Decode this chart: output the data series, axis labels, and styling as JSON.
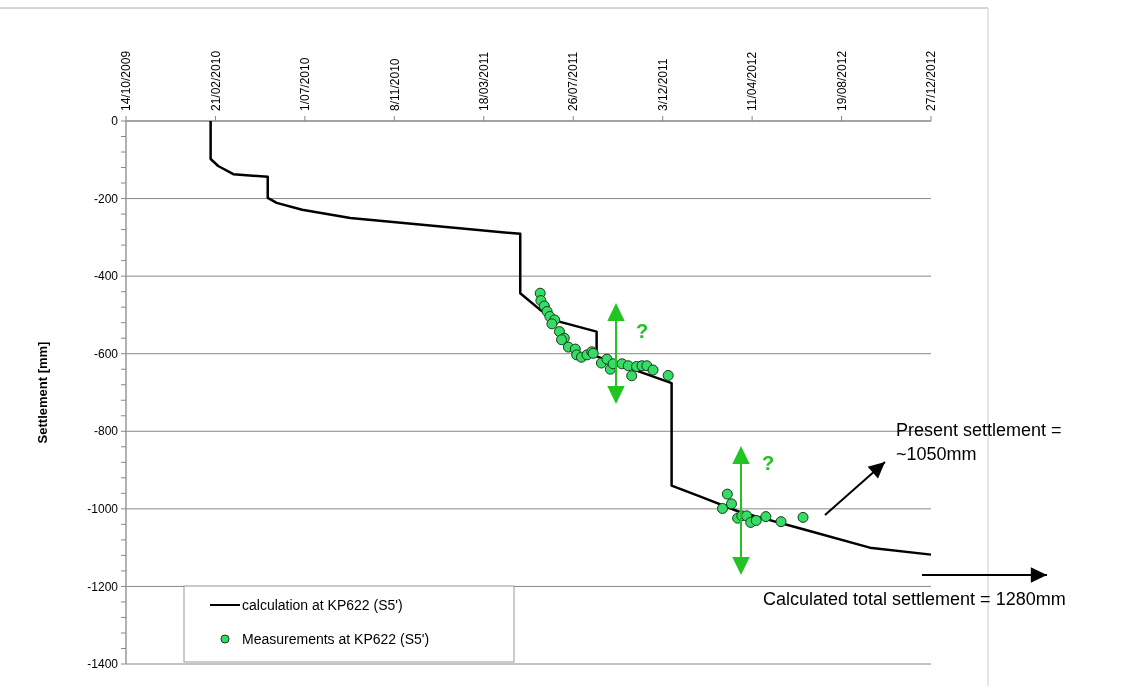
{
  "chart_data": {
    "type": "line",
    "ylabel": "Settlement [mm]",
    "xlim": [
      "2009-10-14",
      "2012-12-27"
    ],
    "xticks": [
      {
        "value": "2009-10-14",
        "label": "14/10/2009"
      },
      {
        "value": "2010-02-21",
        "label": "21/02/2010"
      },
      {
        "value": "2010-07-01",
        "label": "1/07/2010"
      },
      {
        "value": "2010-11-08",
        "label": "8/11/2010"
      },
      {
        "value": "2011-03-18",
        "label": "18/03/2011"
      },
      {
        "value": "2011-07-26",
        "label": "26/07/2011"
      },
      {
        "value": "2011-12-03",
        "label": "3/12/2011"
      },
      {
        "value": "2012-04-11",
        "label": "11/04/2012"
      },
      {
        "value": "2012-08-19",
        "label": "19/08/2012"
      },
      {
        "value": "2012-12-27",
        "label": "27/12/2012"
      }
    ],
    "ylim": [
      -1400,
      0
    ],
    "yticks": [
      0,
      {
        "value": -40,
        "label": null
      },
      {
        "value": -80,
        "label": null
      },
      {
        "value": -120,
        "label": null
      },
      {
        "value": -160,
        "label": null
      },
      -200,
      {
        "value": -240,
        "label": null
      },
      {
        "value": -280,
        "label": null
      },
      {
        "value": -320,
        "label": null
      },
      {
        "value": -360,
        "label": null
      },
      -400,
      {
        "value": -440,
        "label": null
      },
      {
        "value": -480,
        "label": null
      },
      {
        "value": -520,
        "label": null
      },
      {
        "value": -560,
        "label": null
      },
      -600,
      {
        "value": -640,
        "label": null
      },
      {
        "value": -680,
        "label": null
      },
      {
        "value": -720,
        "label": null
      },
      {
        "value": -760,
        "label": null
      },
      -800,
      {
        "value": -840,
        "label": null
      },
      {
        "value": -880,
        "label": null
      },
      {
        "value": -920,
        "label": null
      },
      {
        "value": -960,
        "label": null
      },
      -1000,
      {
        "value": -1040,
        "label": null
      },
      {
        "value": -1080,
        "label": null
      },
      {
        "value": -1120,
        "label": null
      },
      {
        "value": -1160,
        "label": null
      },
      -1200,
      {
        "value": -1240,
        "label": null
      },
      {
        "value": -1280,
        "label": null
      },
      {
        "value": -1320,
        "label": null
      },
      {
        "value": -1360,
        "label": null
      },
      -1400
    ],
    "grid": "y",
    "legend": "bottom left",
    "series": [
      {
        "name": "calculation at KP622 (S5')",
        "color": "#000000",
        "line_style": "solid",
        "x": [
          "2010-02-14",
          "2010-02-14",
          "2010-02-25",
          "2010-03-19",
          "2010-05-08",
          "2010-05-08",
          "2010-05-21",
          "2010-06-27",
          "2010-09-05",
          "2011-05-10",
          "2011-05-10",
          "2011-06-08",
          "2011-07-07",
          "2011-08-29",
          "2011-08-29",
          "2011-12-16",
          "2011-12-16",
          "2012-01-26",
          "2012-03-24",
          "2012-06-27",
          "2012-09-29",
          "2012-12-27"
        ],
        "values": [
          0,
          -98,
          -116,
          -137,
          -144,
          -198,
          -211,
          -229,
          -250,
          -291,
          -444,
          -487,
          -518,
          -543,
          -607,
          -676,
          -940,
          -968,
          -1008,
          -1054,
          -1100,
          -1118
        ]
      },
      {
        "name": "Measurements at KP622 (S5')",
        "type": "scatter",
        "color": "#33dd66",
        "marker": "circle",
        "x": [
          "2011-06-08",
          "2011-06-09",
          "2011-06-14",
          "2011-06-18",
          "2011-06-22",
          "2011-06-29",
          "2011-06-25",
          "2011-07-06",
          "2011-07-13",
          "2011-07-09",
          "2011-07-19",
          "2011-07-29",
          "2011-07-31",
          "2011-08-07",
          "2011-08-15",
          "2011-08-22",
          "2011-08-24",
          "2011-09-05",
          "2011-09-13",
          "2011-09-18",
          "2011-09-22",
          "2011-10-05",
          "2011-10-14",
          "2011-10-19",
          "2011-10-26",
          "2011-11-03",
          "2011-11-10",
          "2011-11-19",
          "2011-12-11",
          "2012-03-06",
          "2012-03-12",
          "2012-02-28",
          "2012-03-21",
          "2012-03-27",
          "2012-04-03",
          "2012-04-09",
          "2012-04-17",
          "2012-05-01",
          "2012-05-23",
          "2012-06-24"
        ],
        "values": [
          -444,
          -463,
          -477,
          -491,
          -504,
          -513,
          -523,
          -543,
          -560,
          -564,
          -583,
          -588,
          -603,
          -609,
          -603,
          -595,
          -599,
          -624,
          -614,
          -640,
          -626,
          -626,
          -631,
          -657,
          -633,
          -631,
          -631,
          -642,
          -656,
          -962,
          -987,
          -999,
          -1024,
          -1018,
          -1018,
          -1035,
          -1030,
          -1020,
          -1033,
          -1022
        ]
      }
    ],
    "annotations": [
      "?",
      "?",
      "Present settlement = ~1050mm",
      "Calculated total settlement = 1280mm"
    ]
  }
}
